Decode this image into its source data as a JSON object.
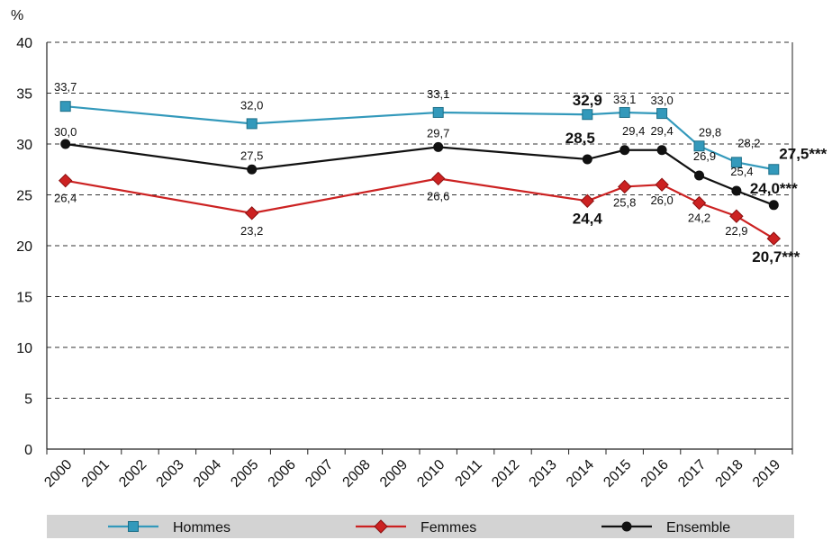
{
  "chart_data": {
    "type": "line",
    "y_unit_label": "%",
    "ylim": [
      0,
      40
    ],
    "yticks": [
      "0",
      "5",
      "10",
      "15",
      "20",
      "25",
      "30",
      "35",
      "40"
    ],
    "categories": [
      "2000",
      "2001",
      "2002",
      "2003",
      "2004",
      "2005",
      "2006",
      "2007",
      "2008",
      "2009",
      "2010",
      "2011",
      "2012",
      "2013",
      "2014",
      "2015",
      "2016",
      "2017",
      "2018",
      "2019"
    ],
    "grid": "horizontal dashed",
    "legend_position": "bottom",
    "series": [
      {
        "name": "Hommes",
        "color": "#3399bb",
        "marker": "square",
        "points": [
          {
            "x": "2000",
            "y": 33.7,
            "label": "33,7"
          },
          {
            "x": "2005",
            "y": 32.0,
            "label": "32,0"
          },
          {
            "x": "2010",
            "y": 33.1,
            "label": "33,1"
          },
          {
            "x": "2014",
            "y": 32.9,
            "label": "32,9",
            "bold": true
          },
          {
            "x": "2015",
            "y": 33.1,
            "label": "33,1"
          },
          {
            "x": "2016",
            "y": 33.0,
            "label": "33,0"
          },
          {
            "x": "2017",
            "y": 29.8,
            "label": "29,8"
          },
          {
            "x": "2018",
            "y": 28.2,
            "label": "28,2"
          },
          {
            "x": "2019",
            "y": 27.5,
            "label": "27,5***",
            "bold": true
          }
        ]
      },
      {
        "name": "Femmes",
        "color": "#cc2222",
        "marker": "diamond",
        "points": [
          {
            "x": "2000",
            "y": 26.4,
            "label": "26,4"
          },
          {
            "x": "2005",
            "y": 23.2,
            "label": "23,2"
          },
          {
            "x": "2010",
            "y": 26.6,
            "label": "26,6"
          },
          {
            "x": "2014",
            "y": 24.4,
            "label": "24,4",
            "bold": true
          },
          {
            "x": "2015",
            "y": 25.8,
            "label": "25,8"
          },
          {
            "x": "2016",
            "y": 26.0,
            "label": "26,0"
          },
          {
            "x": "2017",
            "y": 24.2,
            "label": "24,2"
          },
          {
            "x": "2018",
            "y": 22.9,
            "label": "22,9"
          },
          {
            "x": "2019",
            "y": 20.7,
            "label": "20,7***",
            "bold": true
          }
        ]
      },
      {
        "name": "Ensemble",
        "color": "#111111",
        "marker": "circle",
        "points": [
          {
            "x": "2000",
            "y": 30.0,
            "label": "30,0"
          },
          {
            "x": "2005",
            "y": 27.5,
            "label": "27,5"
          },
          {
            "x": "2010",
            "y": 29.7,
            "label": "29,7"
          },
          {
            "x": "2014",
            "y": 28.5,
            "label": "28,5",
            "bold": true
          },
          {
            "x": "2015",
            "y": 29.4,
            "label": "29,4"
          },
          {
            "x": "2016",
            "y": 29.4,
            "label": "29,4"
          },
          {
            "x": "2017",
            "y": 26.9,
            "label": "26,9"
          },
          {
            "x": "2018",
            "y": 25.4,
            "label": "25,4"
          },
          {
            "x": "2019",
            "y": 24.0,
            "label": "24,0***",
            "bold": true
          }
        ]
      }
    ]
  }
}
